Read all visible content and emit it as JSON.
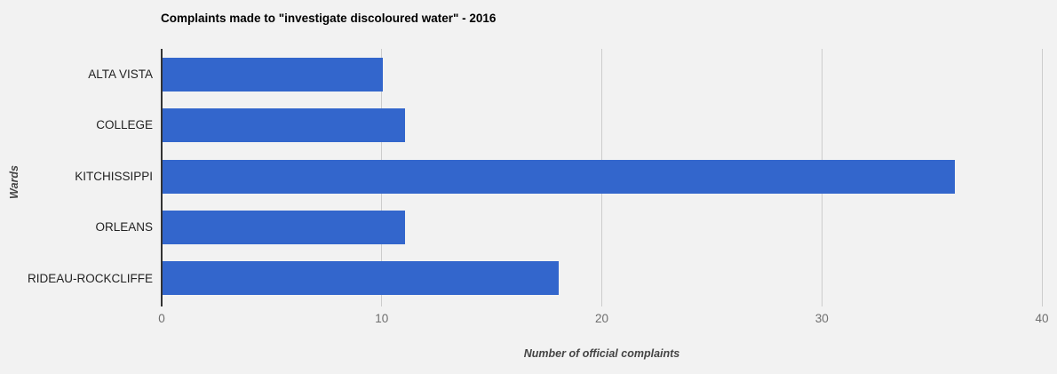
{
  "chart": {
    "title": "Complaints made to \"investigate discoloured water\" - 2016",
    "x_axis_label": "Number of official complaints",
    "y_axis_label": "Wards"
  },
  "chart_data": {
    "type": "bar",
    "orientation": "horizontal",
    "title": "Complaints made to \"investigate discoloured water\" - 2016",
    "xlabel": "Number of official complaints",
    "ylabel": "Wards",
    "categories": [
      "ALTA VISTA",
      "COLLEGE",
      "KITCHISSIPPI",
      "ORLEANS",
      "RIDEAU-ROCKCLIFFE"
    ],
    "values": [
      10,
      11,
      36,
      11,
      18
    ],
    "xlim": [
      0,
      40
    ],
    "xticks": [
      "0",
      "10",
      "20",
      "30",
      "40"
    ],
    "grid": true,
    "legend": false,
    "colors": {
      "bar": "#3366CC",
      "background": "#F2F2F2",
      "gridline": "#CCCCCC",
      "axis_line": "#333333",
      "tick_label": "#6E6E6E",
      "category_label": "#222222",
      "title": "#000000",
      "axis_title": "#444444"
    }
  }
}
